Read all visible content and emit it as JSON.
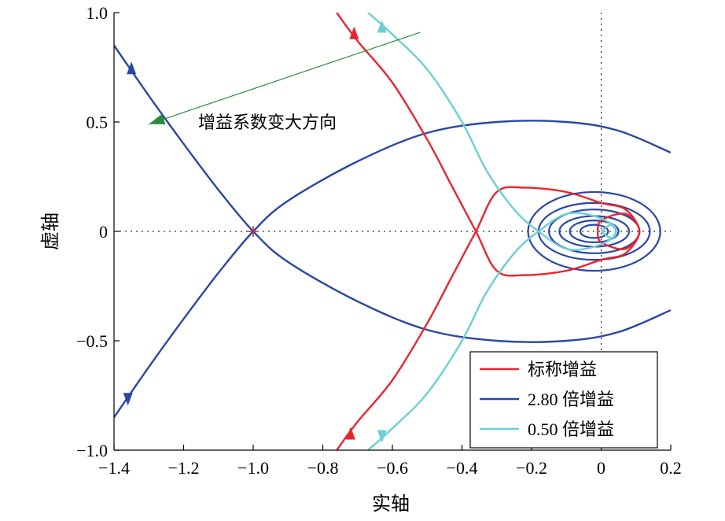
{
  "chart_data": {
    "type": "line",
    "title": "",
    "xlabel": "实轴",
    "ylabel": "虚轴",
    "xlim": [
      -1.4,
      0.2
    ],
    "ylim": [
      -1.0,
      1.0
    ],
    "x_ticks": [
      -1.4,
      -1.2,
      -1.0,
      -0.8,
      -0.6,
      -0.4,
      -0.2,
      0,
      0.2
    ],
    "x_tick_labels": [
      "−1.4",
      "−1.2",
      "−1.0",
      "−0.8",
      "−0.6",
      "−0.4",
      "−0.2",
      "0",
      "0.2"
    ],
    "y_ticks": [
      -1.0,
      -0.5,
      0,
      0.5,
      1.0
    ],
    "y_tick_labels": [
      "−1.0",
      "−0.5",
      "0",
      "0.5",
      "1.0"
    ],
    "grid": false,
    "reference_lines": {
      "x": 0,
      "y": 0,
      "style": "dotted"
    },
    "critical_point": {
      "x": -1.0,
      "y": 0,
      "marker": "+"
    },
    "legend": {
      "position": "bottom-right",
      "entries": [
        {
          "name": "标称增益",
          "color": "#e8252d"
        },
        {
          "name": "2.80 倍增益",
          "color": "#2b47a3"
        },
        {
          "name": "0.50 倍增益",
          "color": "#6dcfd2"
        }
      ]
    },
    "annotation": {
      "text": "增益系数变大方向",
      "arrow_color": "#2e8b3a",
      "arrow_from": {
        "x": -0.52,
        "y": 0.91
      },
      "arrow_to": {
        "x": -1.3,
        "y": 0.49
      }
    },
    "series": [
      {
        "name": "标称增益",
        "color": "#e8252d",
        "branch_upper": [
          {
            "x": -0.76,
            "y": 1.0
          },
          {
            "x": -0.7,
            "y": 0.87
          },
          {
            "x": -0.6,
            "y": 0.68
          },
          {
            "x": -0.5,
            "y": 0.42
          },
          {
            "x": -0.43,
            "y": 0.21
          },
          {
            "x": -0.36,
            "y": 0.0
          },
          {
            "x": -0.3,
            "y": -0.18
          },
          {
            "x": -0.22,
            "y": -0.2
          },
          {
            "x": -0.1,
            "y": -0.18
          },
          {
            "x": 0.0,
            "y": -0.13
          },
          {
            "x": 0.07,
            "y": -0.1
          },
          {
            "x": 0.11,
            "y": 0.0
          },
          {
            "x": 0.07,
            "y": 0.08
          },
          {
            "x": 0.0,
            "y": 0.05
          },
          {
            "x": -0.01,
            "y": 0.0
          }
        ],
        "branch_lower": [
          {
            "x": -0.76,
            "y": -1.0
          },
          {
            "x": -0.7,
            "y": -0.87
          },
          {
            "x": -0.6,
            "y": -0.68
          },
          {
            "x": -0.5,
            "y": -0.42
          },
          {
            "x": -0.43,
            "y": -0.21
          },
          {
            "x": -0.36,
            "y": 0.0
          },
          {
            "x": -0.3,
            "y": 0.18
          },
          {
            "x": -0.22,
            "y": 0.2
          },
          {
            "x": -0.1,
            "y": 0.18
          },
          {
            "x": 0.0,
            "y": 0.13
          },
          {
            "x": 0.07,
            "y": 0.1
          },
          {
            "x": 0.11,
            "y": 0.0
          },
          {
            "x": 0.07,
            "y": -0.08
          },
          {
            "x": 0.0,
            "y": -0.05
          },
          {
            "x": -0.01,
            "y": 0.0
          }
        ]
      },
      {
        "name": "2.80 倍增益",
        "color": "#2b47a3",
        "branch_a": [
          {
            "x": -1.4,
            "y": 0.85
          },
          {
            "x": -1.3,
            "y": 0.62
          },
          {
            "x": -1.2,
            "y": 0.4
          },
          {
            "x": -1.1,
            "y": 0.19
          },
          {
            "x": -1.0,
            "y": 0.0
          },
          {
            "x": -0.9,
            "y": -0.14
          },
          {
            "x": -0.7,
            "y": -0.32
          },
          {
            "x": -0.5,
            "y": -0.45
          },
          {
            "x": -0.3,
            "y": -0.5
          },
          {
            "x": -0.1,
            "y": -0.5
          },
          {
            "x": 0.05,
            "y": -0.46
          },
          {
            "x": 0.2,
            "y": -0.36
          }
        ],
        "branch_b": [
          {
            "x": -1.4,
            "y": -0.85
          },
          {
            "x": -1.3,
            "y": -0.62
          },
          {
            "x": -1.2,
            "y": -0.4
          },
          {
            "x": -1.1,
            "y": -0.19
          },
          {
            "x": -1.0,
            "y": 0.0
          },
          {
            "x": -0.9,
            "y": 0.14
          },
          {
            "x": -0.7,
            "y": 0.32
          },
          {
            "x": -0.5,
            "y": 0.45
          },
          {
            "x": -0.3,
            "y": 0.5
          },
          {
            "x": -0.1,
            "y": 0.5
          },
          {
            "x": 0.05,
            "y": 0.46
          },
          {
            "x": 0.2,
            "y": 0.36
          }
        ]
      },
      {
        "name": "0.50 倍增益",
        "color": "#6dcfd2",
        "branch_upper": [
          {
            "x": -0.67,
            "y": 1.0
          },
          {
            "x": -0.6,
            "y": 0.9
          },
          {
            "x": -0.5,
            "y": 0.74
          },
          {
            "x": -0.4,
            "y": 0.5
          },
          {
            "x": -0.33,
            "y": 0.28
          },
          {
            "x": -0.25,
            "y": 0.1
          },
          {
            "x": -0.18,
            "y": 0.0
          },
          {
            "x": -0.1,
            "y": -0.08
          },
          {
            "x": -0.02,
            "y": -0.07
          },
          {
            "x": 0.04,
            "y": -0.02
          },
          {
            "x": 0.03,
            "y": 0.03
          },
          {
            "x": 0.0,
            "y": 0.0
          }
        ],
        "branch_lower": [
          {
            "x": -0.67,
            "y": -1.0
          },
          {
            "x": -0.6,
            "y": -0.9
          },
          {
            "x": -0.5,
            "y": -0.74
          },
          {
            "x": -0.4,
            "y": -0.5
          },
          {
            "x": -0.33,
            "y": -0.28
          },
          {
            "x": -0.25,
            "y": -0.1
          },
          {
            "x": -0.18,
            "y": 0.0
          },
          {
            "x": -0.1,
            "y": 0.08
          },
          {
            "x": -0.02,
            "y": 0.07
          },
          {
            "x": 0.04,
            "y": 0.02
          },
          {
            "x": 0.03,
            "y": -0.03
          },
          {
            "x": 0.0,
            "y": 0.0
          }
        ]
      }
    ],
    "loops_near_origin": [
      {
        "series": "2.80 倍增益",
        "cx": -0.02,
        "cy": 0.0,
        "rx": [
          0.19,
          0.16,
          0.13,
          0.1,
          0.07,
          0.04
        ],
        "ry": [
          0.18,
          0.13,
          0.1,
          0.07,
          0.05,
          0.03
        ]
      }
    ],
    "direction_arrows": [
      {
        "series": "标称增益",
        "x": -0.71,
        "y": 0.9,
        "dir": "up"
      },
      {
        "series": "标称增益",
        "x": -0.72,
        "y": -0.93,
        "dir": "up"
      },
      {
        "series": "2.80 倍增益",
        "x": -1.35,
        "y": 0.74,
        "dir": "up"
      },
      {
        "series": "2.80 倍增益",
        "x": -1.36,
        "y": -0.76,
        "dir": "down"
      },
      {
        "series": "0.50 倍增益",
        "x": -0.63,
        "y": 0.93,
        "dir": "up"
      },
      {
        "series": "0.50 倍增益",
        "x": -0.63,
        "y": -0.93,
        "dir": "down"
      }
    ]
  }
}
